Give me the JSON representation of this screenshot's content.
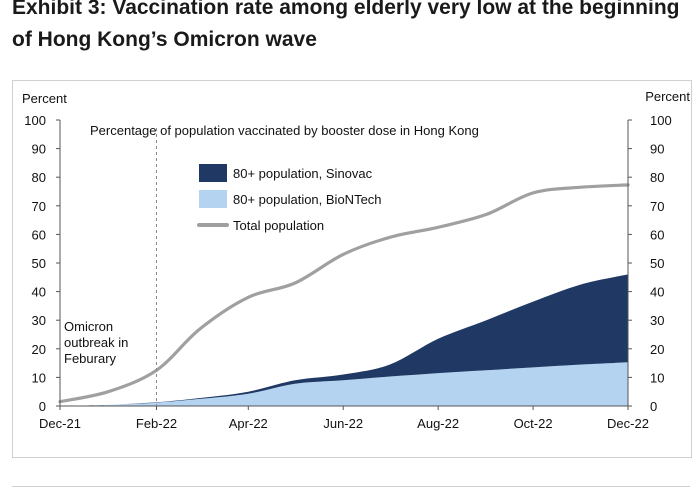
{
  "header": {
    "title_line1": "Exhibit 3: Vaccination rate among elderly very low at the beginning",
    "title_line2": "of Hong Kong’s Omicron wave"
  },
  "chart_data": {
    "type": "area",
    "subtitle": "Percentage of population vaccinated by booster dose in Hong Kong",
    "ylabel_left": "Percent",
    "ylabel_right": "Percent",
    "ylim": [
      0,
      100
    ],
    "yticks": [
      "0",
      "10",
      "20",
      "30",
      "40",
      "50",
      "60",
      "70",
      "80",
      "90",
      "100"
    ],
    "xlim": [
      "2021-12-01",
      "2022-12-01"
    ],
    "xticks": [
      {
        "date": "2021-12-01",
        "label": "Dec-21"
      },
      {
        "date": "2022-02-01",
        "label": "Feb-22"
      },
      {
        "date": "2022-04-01",
        "label": "Apr-22"
      },
      {
        "date": "2022-06-01",
        "label": "Jun-22"
      },
      {
        "date": "2022-08-01",
        "label": "Aug-22"
      },
      {
        "date": "2022-10-01",
        "label": "Oct-22"
      },
      {
        "date": "2022-12-01",
        "label": "Dec-22"
      }
    ],
    "annotation": {
      "date": "2022-02-01",
      "lines": [
        "Omicron",
        "outbreak in",
        "Feburary"
      ]
    },
    "x": [
      "2021-12-01",
      "2022-01-01",
      "2022-02-01",
      "2022-03-01",
      "2022-04-01",
      "2022-05-01",
      "2022-06-01",
      "2022-07-01",
      "2022-08-01",
      "2022-09-01",
      "2022-10-01",
      "2022-11-01",
      "2022-12-01"
    ],
    "series": [
      {
        "name": "80+ population, BioNTech",
        "kind": "area",
        "stack": true,
        "color": "#b4d3f0",
        "values": [
          0,
          0.4,
          1.2,
          2.5,
          4.3,
          7.8,
          9.0,
          10.3,
          11.5,
          12.5,
          13.5,
          14.5,
          15.3
        ]
      },
      {
        "name": "80+ population, Sinovac",
        "kind": "area",
        "stack": true,
        "color": "#1f3864",
        "values": [
          0,
          0,
          0.1,
          0.3,
          0.7,
          1.2,
          2.0,
          4.2,
          12.0,
          17.5,
          23.0,
          28.0,
          30.7
        ]
      },
      {
        "name": "Total population",
        "kind": "line",
        "color": "#a0a0a0",
        "values": [
          1.5,
          5.0,
          12.5,
          27.0,
          38.0,
          43.0,
          53.0,
          59.0,
          62.5,
          67.0,
          74.5,
          76.5,
          77.3
        ]
      }
    ],
    "legend_position": "top-center",
    "grid": false
  }
}
